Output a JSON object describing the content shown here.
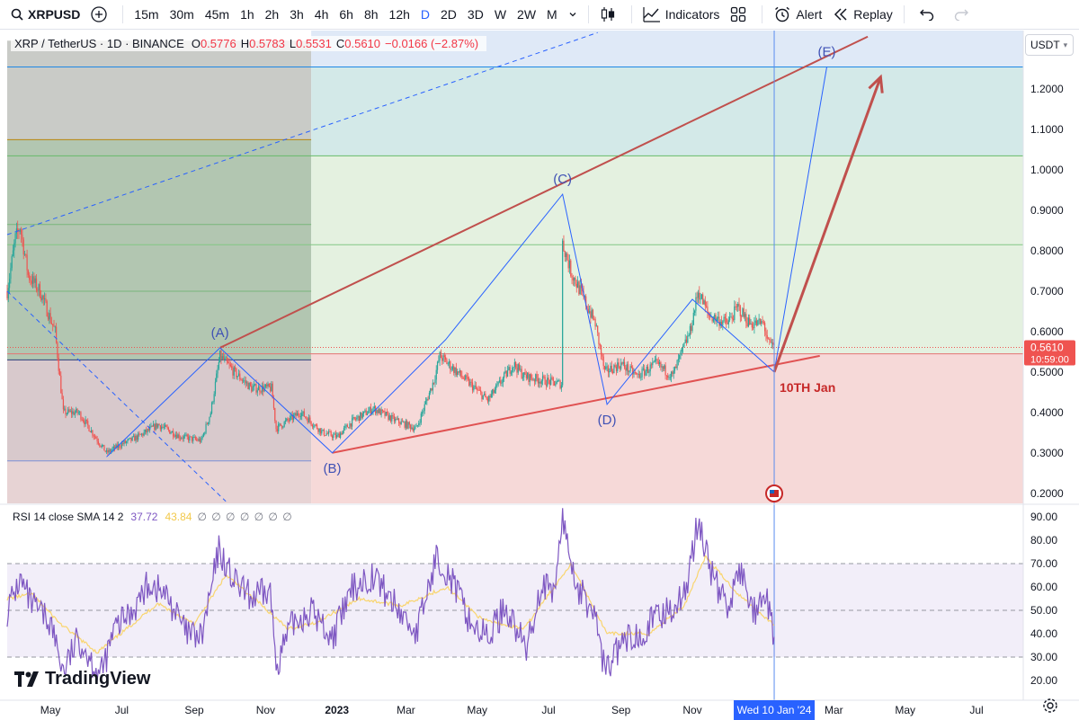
{
  "toolbar": {
    "symbol": "XRPUSD",
    "intervals": [
      "15m",
      "30m",
      "45m",
      "1h",
      "2h",
      "3h",
      "4h",
      "6h",
      "8h",
      "12h",
      "D",
      "2D",
      "3D",
      "W",
      "2W",
      "M"
    ],
    "active_interval": "D",
    "indicators_label": "Indicators",
    "alert_label": "Alert",
    "replay_label": "Replay",
    "icons": [
      "search-icon",
      "plus-circle-icon",
      "chevron-down-icon",
      "candles-icon",
      "indicators-icon",
      "layout-grid-icon",
      "alarm-clock-icon",
      "replay-icon",
      "undo-icon",
      "redo-icon"
    ]
  },
  "legend": {
    "title": "XRP / TetherUS · 1D · BINANCE",
    "o_label": "O",
    "o": "0.5776",
    "h_label": "H",
    "h": "0.5783",
    "l_label": "L",
    "l": "0.5531",
    "c_label": "C",
    "c": "0.5610",
    "change": "−0.0166 (−2.87%)"
  },
  "currency": "USDT",
  "rsi_legend": {
    "name": "RSI 14 close SMA 14 2",
    "rsi": "37.72",
    "sma": "43.84",
    "nulls": "∅ ∅ ∅ ∅ ∅ ∅ ∅"
  },
  "brand": "TradingView",
  "colors": {
    "bull": "#26a69a",
    "bear": "#ef5350",
    "wave": "#2962ff",
    "channel": "#c62828",
    "rsi": "#7e57c2",
    "rsi_sma": "#f9d56e",
    "crosshair": "#5b8def"
  },
  "chart_data": [
    {
      "type": "candlestick",
      "title": "XRP / TetherUS · 1D · BINANCE",
      "x_range": [
        "2022-03-25",
        "2024-08-10"
      ],
      "ylim": [
        0.175,
        1.345
      ],
      "y_ticks": [
        0.2,
        0.3,
        0.4,
        0.5,
        0.6,
        0.7,
        0.8,
        0.9,
        1.0,
        1.1,
        1.2
      ],
      "x_ticks": [
        {
          "date": "2022-05-01",
          "label": "May"
        },
        {
          "date": "2022-07-01",
          "label": "Jul"
        },
        {
          "date": "2022-09-01",
          "label": "Sep"
        },
        {
          "date": "2022-11-01",
          "label": "Nov"
        },
        {
          "date": "2023-01-01",
          "label": "2023"
        },
        {
          "date": "2023-03-01",
          "label": "Mar"
        },
        {
          "date": "2023-05-01",
          "label": "May"
        },
        {
          "date": "2023-07-01",
          "label": "Jul"
        },
        {
          "date": "2023-09-01",
          "label": "Sep"
        },
        {
          "date": "2023-11-01",
          "label": "Nov"
        },
        {
          "date": "2024-03-01",
          "label": "Mar"
        },
        {
          "date": "2024-05-01",
          "label": "May"
        },
        {
          "date": "2024-07-01",
          "label": "Jul"
        }
      ],
      "price_path": [
        [
          "2022-03-25",
          0.7
        ],
        [
          "2022-04-01",
          0.83
        ],
        [
          "2022-04-05",
          0.86
        ],
        [
          "2022-04-12",
          0.74
        ],
        [
          "2022-04-22",
          0.7
        ],
        [
          "2022-05-05",
          0.6
        ],
        [
          "2022-05-12",
          0.4
        ],
        [
          "2022-05-25",
          0.4
        ],
        [
          "2022-06-13",
          0.32
        ],
        [
          "2022-06-18",
          0.3
        ],
        [
          "2022-06-30",
          0.32
        ],
        [
          "2022-07-15",
          0.34
        ],
        [
          "2022-08-01",
          0.37
        ],
        [
          "2022-08-20",
          0.34
        ],
        [
          "2022-09-07",
          0.33
        ],
        [
          "2022-09-15",
          0.4
        ],
        [
          "2022-09-23",
          0.54
        ],
        [
          "2022-10-05",
          0.5
        ],
        [
          "2022-10-20",
          0.46
        ],
        [
          "2022-11-06",
          0.46
        ],
        [
          "2022-11-10",
          0.36
        ],
        [
          "2022-11-20",
          0.38
        ],
        [
          "2022-12-01",
          0.4
        ],
        [
          "2022-12-20",
          0.35
        ],
        [
          "2023-01-01",
          0.34
        ],
        [
          "2023-01-15",
          0.38
        ],
        [
          "2023-02-01",
          0.41
        ],
        [
          "2023-02-20",
          0.38
        ],
        [
          "2023-03-10",
          0.36
        ],
        [
          "2023-03-25",
          0.48
        ],
        [
          "2023-03-30",
          0.54
        ],
        [
          "2023-04-10",
          0.51
        ],
        [
          "2023-04-25",
          0.47
        ],
        [
          "2023-05-10",
          0.43
        ],
        [
          "2023-06-01",
          0.52
        ],
        [
          "2023-06-10",
          0.49
        ],
        [
          "2023-06-25",
          0.48
        ],
        [
          "2023-07-12",
          0.47
        ],
        [
          "2023-07-13",
          0.82
        ],
        [
          "2023-07-20",
          0.75
        ],
        [
          "2023-08-10",
          0.62
        ],
        [
          "2023-08-18",
          0.5
        ],
        [
          "2023-09-01",
          0.52
        ],
        [
          "2023-09-15",
          0.49
        ],
        [
          "2023-10-01",
          0.52
        ],
        [
          "2023-10-15",
          0.49
        ],
        [
          "2023-10-30",
          0.6
        ],
        [
          "2023-11-06",
          0.7
        ],
        [
          "2023-11-15",
          0.64
        ],
        [
          "2023-12-01",
          0.62
        ],
        [
          "2023-12-10",
          0.66
        ],
        [
          "2023-12-20",
          0.62
        ],
        [
          "2024-01-01",
          0.62
        ],
        [
          "2024-01-05",
          0.57
        ],
        [
          "2024-01-10",
          0.561
        ]
      ],
      "last_price": "0.5610",
      "countdown": "10:59:00",
      "wave_points": [
        {
          "label": "(A)",
          "date": "2022-09-23",
          "value": 0.56
        },
        {
          "label": "(B)",
          "date": "2022-12-28",
          "value": 0.3
        },
        {
          "label": "(C)",
          "date": "2023-07-13",
          "value": 0.94
        },
        {
          "label": "(D)",
          "date": "2023-08-20",
          "value": 0.42
        },
        {
          "label": "(E)",
          "date": "2024-02-24",
          "value": 1.255
        }
      ],
      "wave_path": [
        [
          "2022-06-18",
          0.29
        ],
        [
          "2022-09-23",
          0.56
        ],
        [
          "2022-12-28",
          0.3
        ],
        [
          "2023-04-04",
          0.58
        ],
        [
          "2023-07-13",
          0.94
        ],
        [
          "2023-08-20",
          0.42
        ],
        [
          "2023-11-01",
          0.68
        ],
        [
          "2024-01-10",
          0.5
        ],
        [
          "2024-02-24",
          1.255
        ]
      ],
      "upper_channel": [
        [
          "2022-09-23",
          0.56
        ],
        [
          "2024-03-30",
          1.33
        ]
      ],
      "lower_channel": [
        [
          "2022-12-28",
          0.3
        ],
        [
          "2024-02-18",
          0.54
        ]
      ],
      "projection_arrow": [
        [
          "2024-01-10",
          0.5
        ],
        [
          "2024-04-10",
          1.23
        ]
      ],
      "projection_label": "10TH Jan",
      "horizontal_levels": [
        0.28,
        0.53,
        0.7,
        0.865,
        1.075
      ],
      "right_levels": [
        0.545,
        0.815,
        1.035,
        1.255
      ],
      "crosshair_date": "2024-01-10",
      "crosshair_label": "Wed 10 Jan '24"
    },
    {
      "type": "line",
      "title": "RSI 14 close SMA 14 2",
      "ylim": [
        15,
        95
      ],
      "y_ticks": [
        20,
        30,
        40,
        50,
        60,
        70,
        80,
        90
      ],
      "bands": [
        30,
        50,
        70
      ],
      "series": [
        {
          "name": "RSI",
          "points": [
            [
              "2022-03-25",
              50
            ],
            [
              "2022-04-05",
              63
            ],
            [
              "2022-04-15",
              52
            ],
            [
              "2022-05-01",
              45
            ],
            [
              "2022-05-12",
              24
            ],
            [
              "2022-05-25",
              38
            ],
            [
              "2022-06-13",
              22
            ],
            [
              "2022-06-25",
              42
            ],
            [
              "2022-07-10",
              50
            ],
            [
              "2022-07-25",
              62
            ],
            [
              "2022-08-10",
              55
            ],
            [
              "2022-08-25",
              40
            ],
            [
              "2022-09-07",
              38
            ],
            [
              "2022-09-14",
              55
            ],
            [
              "2022-09-22",
              76
            ],
            [
              "2022-10-05",
              62
            ],
            [
              "2022-10-20",
              55
            ],
            [
              "2022-11-05",
              58
            ],
            [
              "2022-11-10",
              27
            ],
            [
              "2022-11-25",
              45
            ],
            [
              "2022-12-10",
              50
            ],
            [
              "2022-12-28",
              38
            ],
            [
              "2023-01-15",
              60
            ],
            [
              "2023-02-01",
              65
            ],
            [
              "2023-02-20",
              52
            ],
            [
              "2023-03-10",
              40
            ],
            [
              "2023-03-28",
              74
            ],
            [
              "2023-04-10",
              62
            ],
            [
              "2023-04-25",
              45
            ],
            [
              "2023-05-10",
              38
            ],
            [
              "2023-05-25",
              52
            ],
            [
              "2023-06-12",
              33
            ],
            [
              "2023-06-25",
              62
            ],
            [
              "2023-07-05",
              55
            ],
            [
              "2023-07-13",
              89
            ],
            [
              "2023-07-25",
              60
            ],
            [
              "2023-08-10",
              48
            ],
            [
              "2023-08-18",
              24
            ],
            [
              "2023-09-01",
              35
            ],
            [
              "2023-09-20",
              42
            ],
            [
              "2023-10-10",
              50
            ],
            [
              "2023-10-25",
              56
            ],
            [
              "2023-11-06",
              88
            ],
            [
              "2023-11-20",
              62
            ],
            [
              "2023-12-01",
              52
            ],
            [
              "2023-12-12",
              66
            ],
            [
              "2023-12-25",
              48
            ],
            [
              "2024-01-03",
              55
            ],
            [
              "2024-01-10",
              37.7
            ]
          ]
        },
        {
          "name": "SMA",
          "points": [
            [
              "2022-03-25",
              55
            ],
            [
              "2022-04-15",
              57
            ],
            [
              "2022-05-10",
              44
            ],
            [
              "2022-06-10",
              32
            ],
            [
              "2022-07-05",
              42
            ],
            [
              "2022-08-01",
              53
            ],
            [
              "2022-09-01",
              44
            ],
            [
              "2022-09-28",
              65
            ],
            [
              "2022-10-25",
              54
            ],
            [
              "2022-11-20",
              42
            ],
            [
              "2022-12-15",
              45
            ],
            [
              "2023-01-20",
              55
            ],
            [
              "2023-02-25",
              52
            ],
            [
              "2023-04-05",
              60
            ],
            [
              "2023-05-05",
              46
            ],
            [
              "2023-06-10",
              42
            ],
            [
              "2023-07-20",
              70
            ],
            [
              "2023-08-20",
              40
            ],
            [
              "2023-09-25",
              40
            ],
            [
              "2023-10-25",
              52
            ],
            [
              "2023-11-12",
              73
            ],
            [
              "2023-12-10",
              57
            ],
            [
              "2024-01-10",
              43.8
            ]
          ]
        }
      ]
    }
  ]
}
